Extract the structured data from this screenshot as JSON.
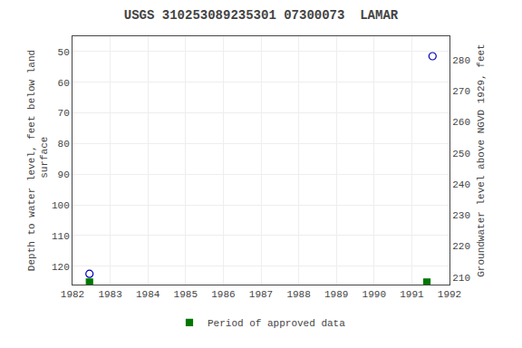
{
  "chart_data": {
    "type": "scatter",
    "title": "USGS 310253089235301 07300073  LAMAR",
    "y_label": "Depth to water level, feet below land\n surface",
    "y2_label": "Groundwater level above NGVD 1929, feet",
    "xlim": [
      1982,
      1992
    ],
    "xticks": [
      1982,
      1983,
      1984,
      1985,
      1986,
      1987,
      1988,
      1989,
      1990,
      1991,
      1992
    ],
    "ylim": [
      126,
      45
    ],
    "yticks": [
      50,
      60,
      70,
      80,
      90,
      100,
      110,
      120
    ],
    "y2lim": [
      207.6,
      287.6
    ],
    "y2ticks": [
      280,
      270,
      260,
      250,
      240,
      230,
      220,
      210
    ],
    "grid": true,
    "legend": "bottom",
    "series": [
      {
        "x": [
          1982.45,
          1991.55
        ],
        "values": [
          122.5,
          51.5
        ],
        "color": "#0000bb",
        "marker": "circle-open"
      },
      {
        "name": "Period of approved data",
        "x": [
          1982.45,
          1991.4
        ],
        "values": [
          125.2,
          125.2
        ],
        "color": "#007700",
        "marker": "square"
      }
    ]
  }
}
